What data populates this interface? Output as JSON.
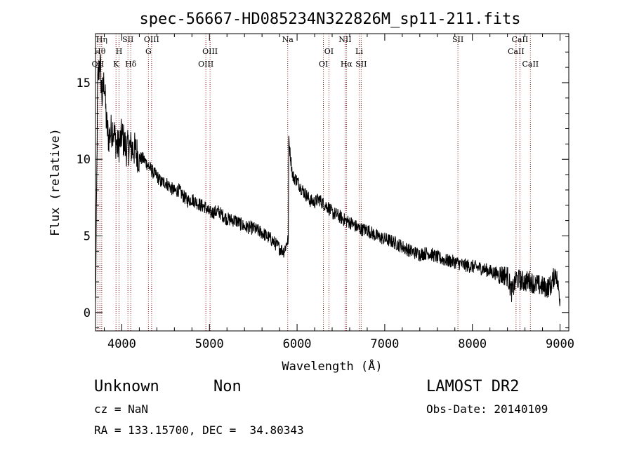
{
  "chart_data": {
    "type": "line",
    "title": "spec-56667-HD085234N322826M_sp11-211.fits",
    "xlabel": "Wavelength (Å)",
    "ylabel": "Flux (relative)",
    "xlim": [
      3700,
      9100
    ],
    "ylim": [
      -1.2,
      18.2
    ],
    "x_ticks": [
      4000,
      5000,
      6000,
      7000,
      8000,
      9000
    ],
    "x_tick_labels": [
      "4000",
      "5000",
      "6000",
      "7000",
      "8000",
      "9000"
    ],
    "y_ticks": [
      0,
      5,
      10,
      15
    ],
    "y_tick_labels": [
      "0",
      "5",
      "10",
      "15"
    ],
    "grid": false,
    "line_color": "#000000",
    "marker_color": "#8b1a1a",
    "series": [
      {
        "x": [
          3700,
          3725,
          3750,
          3775,
          3800,
          3825,
          3850,
          3875,
          3900,
          3925,
          3950,
          3975,
          4000,
          4050,
          4100,
          4150,
          4200,
          4250,
          4300,
          4350,
          4400,
          4450,
          4500,
          4550,
          4600,
          4650,
          4700,
          4750,
          4800,
          4850,
          4900,
          4950,
          5000,
          5100,
          5200,
          5300,
          5400,
          5500,
          5600,
          5700,
          5800,
          5850,
          5880,
          5900,
          5905,
          5920,
          5950,
          6000,
          6050,
          6100,
          6150,
          6200,
          6250,
          6300,
          6350,
          6400,
          6450,
          6500,
          6550,
          6600,
          6650,
          6700,
          6750,
          6800,
          6900,
          7000,
          7100,
          7200,
          7300,
          7400,
          7500,
          7600,
          7700,
          7800,
          7850,
          7900,
          8000,
          8100,
          8200,
          8300,
          8400,
          8450,
          8500,
          8550,
          8600,
          8650,
          8700,
          8750,
          8800,
          8850,
          8900,
          8950,
          8980,
          9000
        ],
        "y": [
          0.2,
          15.0,
          16.5,
          14.0,
          15.2,
          12.3,
          11.4,
          11.8,
          12.1,
          11.3,
          10.8,
          11.0,
          11.6,
          10.7,
          10.8,
          10.6,
          10.1,
          10.0,
          9.6,
          9.2,
          8.9,
          8.5,
          8.5,
          8.2,
          7.9,
          8.0,
          7.6,
          7.3,
          7.4,
          7.2,
          7.0,
          6.9,
          6.5,
          6.6,
          6.1,
          6.0,
          5.6,
          5.5,
          5.2,
          4.8,
          4.2,
          4.0,
          4.5,
          4.8,
          11.5,
          10.4,
          8.9,
          8.6,
          8.1,
          7.7,
          7.3,
          7.2,
          7.4,
          7.1,
          6.9,
          6.5,
          6.4,
          6.2,
          6.0,
          5.9,
          5.7,
          5.5,
          5.4,
          5.4,
          5.0,
          4.8,
          4.6,
          4.3,
          4.0,
          3.8,
          3.9,
          3.6,
          3.4,
          3.3,
          3.2,
          3.1,
          3.0,
          2.9,
          2.7,
          2.5,
          2.4,
          1.3,
          2.2,
          2.1,
          2.0,
          2.1,
          1.9,
          1.8,
          1.7,
          1.6,
          1.8,
          2.7,
          1.6,
          0.9
        ]
      }
    ],
    "lines": [
      {
        "x": 3727,
        "label": "OII",
        "row": 2
      },
      {
        "x": 3750,
        "label": "Hθ",
        "row": 1
      },
      {
        "x": 3771,
        "label": "Hη",
        "row": 0
      },
      {
        "x": 3934,
        "label": "K",
        "row": 2
      },
      {
        "x": 3969,
        "label": "H",
        "row": 1
      },
      {
        "x": 4070,
        "label": "SII",
        "row": 0
      },
      {
        "x": 4102,
        "label": "Hδ",
        "row": 2
      },
      {
        "x": 4304,
        "label": "G",
        "row": 1
      },
      {
        "x": 4340,
        "label": "OIII",
        "row": 0
      },
      {
        "x": 4959,
        "label": "OIII",
        "row": 2
      },
      {
        "x": 5007,
        "label": "OIII",
        "row": 1
      },
      {
        "x": 5893,
        "label": "Na",
        "row": 0
      },
      {
        "x": 6300,
        "label": "OI",
        "row": 2
      },
      {
        "x": 6363,
        "label": "OI",
        "row": 1
      },
      {
        "x": 6548,
        "label": "NII",
        "row": 0
      },
      {
        "x": 6563,
        "label": "Hα",
        "row": 2
      },
      {
        "x": 6708,
        "label": "Li",
        "row": 1
      },
      {
        "x": 6731,
        "label": "SII",
        "row": 2
      },
      {
        "x": 7835,
        "label": "SII",
        "row": 0
      },
      {
        "x": 8498,
        "label": "CaII",
        "row": 1
      },
      {
        "x": 8542,
        "label": "CaII",
        "row": 0
      },
      {
        "x": 8662,
        "label": "CaII",
        "row": 2
      }
    ]
  },
  "info": {
    "class": "Unknown",
    "subclass": "Non",
    "survey": "LAMOST DR2",
    "cz": "cz = NaN",
    "obs_date": "Obs-Date: 20140109",
    "coords": "RA = 133.15700, DEC =  34.80343"
  }
}
